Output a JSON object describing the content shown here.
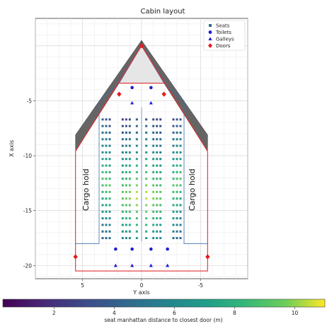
{
  "chart_data": {
    "type": "scatter",
    "title": "Cabin layout",
    "xlabel": "Y axis",
    "ylabel": "X axis",
    "xlim": [
      9,
      -9
    ],
    "ylim": [
      -21.2,
      2.5
    ],
    "x_inverted": true,
    "x_ticks": [
      5,
      0,
      -5
    ],
    "y_ticks": [
      -5,
      -10,
      -15,
      -20
    ],
    "grid": true,
    "legend_position": "top-right",
    "legend": [
      {
        "label": "Seats",
        "marker": "square",
        "color": "#2c6e8e"
      },
      {
        "label": "Toilets",
        "marker": "circle",
        "color": "#1f1fcf"
      },
      {
        "label": "Galleys",
        "marker": "triangle",
        "color": "#1f1fcf"
      },
      {
        "label": "Doors",
        "marker": "diamond",
        "color": "#e8191a"
      }
    ],
    "annotations": [
      "Cargo hold",
      "Cargo hold"
    ],
    "cabin_outline": [
      [
        0,
        0
      ],
      [
        -5.6,
        -9.6
      ],
      [
        -5.6,
        -20.5
      ],
      [
        5.6,
        -20.5
      ],
      [
        5.6,
        -9.6
      ]
    ],
    "inner_walls": [
      [
        0,
        0
      ],
      [
        -1.9,
        -3.4
      ],
      [
        -3.6,
        -5.0
      ],
      [
        -3.6,
        -18.0
      ],
      [
        -5.6,
        -18.0
      ],
      [
        -5.6,
        -20.5
      ],
      [
        5.6,
        -20.5
      ],
      [
        5.6,
        -18.0
      ],
      [
        3.6,
        -18.0
      ],
      [
        3.6,
        -5.0
      ],
      [
        1.9,
        -3.4
      ]
    ],
    "doors": [
      [
        0,
        0
      ],
      [
        1.9,
        -4.4
      ],
      [
        -1.9,
        -4.4
      ],
      [
        5.6,
        -19.2
      ],
      [
        -5.6,
        -19.2
      ]
    ],
    "toilets": [
      [
        0.8,
        -3.8
      ],
      [
        -0.8,
        -3.8
      ],
      [
        2.2,
        -18.5
      ],
      [
        0.8,
        -18.5
      ],
      [
        -0.8,
        -18.5
      ],
      [
        -2.2,
        -18.5
      ]
    ],
    "galleys": [
      [
        0.8,
        -5.2
      ],
      [
        -0.8,
        -5.2
      ],
      [
        2.2,
        -20.0
      ],
      [
        0.8,
        -20.0
      ],
      [
        -0.8,
        -20.0
      ],
      [
        -2.2,
        -20.0
      ]
    ],
    "seat_columns": [
      3.3,
      3.0,
      2.7,
      1.6,
      1.3,
      1.0,
      0.4,
      -0.4,
      -1.0,
      -1.3,
      -1.6,
      -2.7,
      -3.0,
      -3.3
    ],
    "seat_rows": [
      -6.7,
      -7.3,
      -7.9,
      -8.5,
      -9.1,
      -9.7,
      -10.3,
      -10.9,
      -11.5,
      -12.1,
      -12.7,
      -13.3,
      -13.9,
      -14.5,
      -15.1,
      -15.7,
      -16.3,
      -16.9,
      -17.5
    ],
    "seat_value_note": "seat color = manhattan distance to closest door",
    "colorbar": {
      "label": "seat manhattan distance to closest door (m)",
      "min": 0.3,
      "max": 11.0,
      "ticks": [
        2,
        4,
        6,
        8,
        10
      ],
      "colormap": "viridis"
    }
  },
  "texts": {
    "title": "Cabin layout",
    "xlabel": "Y axis",
    "ylabel": "X axis",
    "cargo_left": "Cargo hold",
    "cargo_right": "Cargo hold",
    "colorbar_label": "seat manhattan distance to closest door (m)"
  }
}
